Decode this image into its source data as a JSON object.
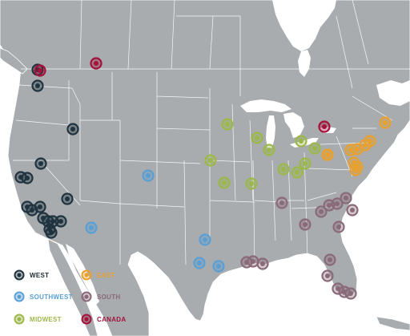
{
  "colors": {
    "water": "#ffffff",
    "land": "#a8acae",
    "border": "#ffffff"
  },
  "regions": {
    "west": {
      "label": "WEST",
      "color": "#1f3340",
      "icon": "ring-dot-marker"
    },
    "southwest": {
      "label": "SOUTHWEST",
      "color": "#5a9fd4",
      "icon": "ring-dot-marker"
    },
    "midwest": {
      "label": "MIDWEST",
      "color": "#9cb84a",
      "icon": "ring-dot-marker"
    },
    "east": {
      "label": "EAST",
      "color": "#e8a02e",
      "icon": "ring-dot-marker"
    },
    "south": {
      "label": "SOUTH",
      "color": "#8a6a78",
      "icon": "ring-dot-marker"
    },
    "canada": {
      "label": "CANADA",
      "color": "#a3123a",
      "icon": "ring-dot-marker"
    }
  },
  "legend_order": [
    "west",
    "east",
    "southwest",
    "south",
    "midwest",
    "canada"
  ]
}
